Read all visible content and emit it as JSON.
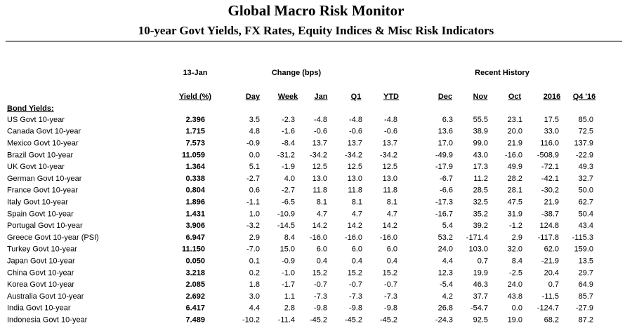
{
  "header": {
    "title": "Global Macro Risk Monitor",
    "subtitle": "10-year Govt Yields, FX Rates, Equity Indices & Misc Risk Indicators"
  },
  "table": {
    "groups": [
      "13-Jan",
      "Change (bps)",
      "Recent History"
    ],
    "columns": [
      "Yield (%)",
      "Day",
      "Week",
      "Jan",
      "Q1",
      "YTD",
      "Dec",
      "Nov",
      "Oct",
      "2016",
      "Q4 '16"
    ],
    "section": "Bond Yields:",
    "rows": [
      [
        "US Govt 10-year",
        "2.396",
        "3.5",
        "-2.3",
        "-4.8",
        "-4.8",
        "-4.8",
        "6.3",
        "55.5",
        "23.1",
        "17.5",
        "85.0"
      ],
      [
        "Canada Govt 10-year",
        "1.715",
        "4.8",
        "-1.6",
        "-0.6",
        "-0.6",
        "-0.6",
        "13.6",
        "38.9",
        "20.0",
        "33.0",
        "72.5"
      ],
      [
        "Mexico Govt 10-year",
        "7.573",
        "-0.9",
        "-8.4",
        "13.7",
        "13.7",
        "13.7",
        "17.0",
        "99.0",
        "21.9",
        "116.0",
        "137.9"
      ],
      [
        "Brazil Govt 10-year",
        "11.059",
        "0.0",
        "-31.2",
        "-34.2",
        "-34.2",
        "-34.2",
        "-49.9",
        "43.0",
        "-16.0",
        "-508.9",
        "-22.9"
      ],
      [
        "UK Govt 10-year",
        "1.364",
        "5.1",
        "-1.9",
        "12.5",
        "12.5",
        "12.5",
        "-17.9",
        "17.3",
        "49.9",
        "-72.1",
        "49.3"
      ],
      [
        "German Govt 10-year",
        "0.338",
        "-2.7",
        "4.0",
        "13.0",
        "13.0",
        "13.0",
        "-6.7",
        "11.2",
        "28.2",
        "-42.1",
        "32.7"
      ],
      [
        "France Govt 10-year",
        "0.804",
        "0.6",
        "-2.7",
        "11.8",
        "11.8",
        "11.8",
        "-6.6",
        "28.5",
        "28.1",
        "-30.2",
        "50.0"
      ],
      [
        "Italy Govt 10-year",
        "1.896",
        "-1.1",
        "-6.5",
        "8.1",
        "8.1",
        "8.1",
        "-17.3",
        "32.5",
        "47.5",
        "21.9",
        "62.7"
      ],
      [
        "Spain Govt 10-year",
        "1.431",
        "1.0",
        "-10.9",
        "4.7",
        "4.7",
        "4.7",
        "-16.7",
        "35.2",
        "31.9",
        "-38.7",
        "50.4"
      ],
      [
        "Portugal Govt 10-year",
        "3.906",
        "-3.2",
        "-14.5",
        "14.2",
        "14.2",
        "14.2",
        "5.4",
        "39.2",
        "-1.2",
        "124.8",
        "43.4"
      ],
      [
        "Greece Govt 10-year (PSI)",
        "6.947",
        "2.9",
        "8.4",
        "-16.0",
        "-16.0",
        "-16.0",
        "53.2",
        "-171.4",
        "2.9",
        "-117.8",
        "-115.3"
      ],
      [
        "Turkey Govt 10-year",
        "11.150",
        "-7.0",
        "15.0",
        "6.0",
        "6.0",
        "6.0",
        "24.0",
        "103.0",
        "32.0",
        "62.0",
        "159.0"
      ],
      [
        "Japan Govt 10-year",
        "0.050",
        "0.1",
        "-0.9",
        "0.4",
        "0.4",
        "0.4",
        "4.4",
        "0.7",
        "8.4",
        "-21.9",
        "13.5"
      ],
      [
        "China Govt 10-year",
        "3.218",
        "0.2",
        "-1.0",
        "15.2",
        "15.2",
        "15.2",
        "12.3",
        "19.9",
        "-2.5",
        "20.4",
        "29.7"
      ],
      [
        "Korea Govt 10-year",
        "2.085",
        "1.8",
        "-1.7",
        "-0.7",
        "-0.7",
        "-0.7",
        "-5.4",
        "46.3",
        "24.0",
        "0.7",
        "64.9"
      ],
      [
        "Australia Govt 10-year",
        "2.692",
        "3.0",
        "1.1",
        "-7.3",
        "-7.3",
        "-7.3",
        "4.2",
        "37.7",
        "43.8",
        "-11.5",
        "85.7"
      ],
      [
        "India Govt 10-year",
        "6.417",
        "4.4",
        "2.8",
        "-9.8",
        "-9.8",
        "-9.8",
        "26.8",
        "-54.7",
        "0.0",
        "-124.7",
        "-27.9"
      ],
      [
        "Indonesia Govt 10-year",
        "7.489",
        "-10.2",
        "-11.4",
        "-45.2",
        "-45.2",
        "-45.2",
        "-24.3",
        "92.5",
        "19.0",
        "68.2",
        "87.2"
      ]
    ]
  }
}
